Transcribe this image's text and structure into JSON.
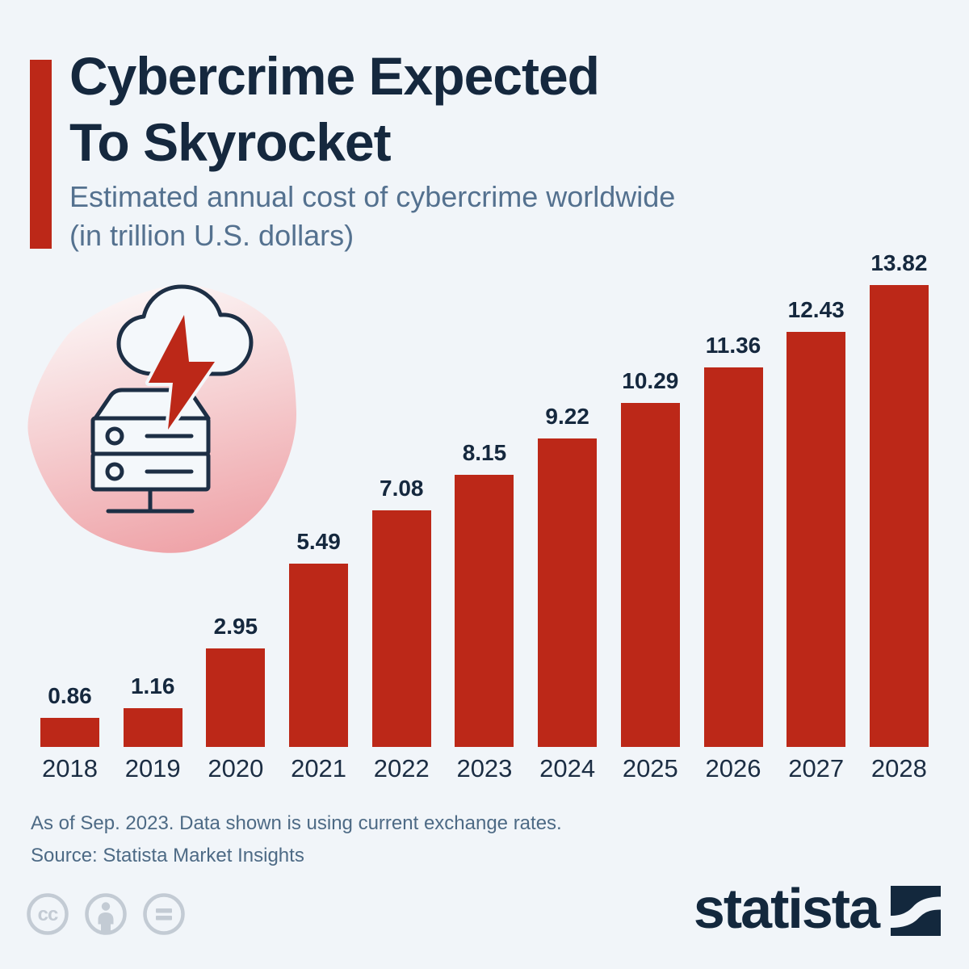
{
  "page": {
    "background": "#F1F5F9"
  },
  "header": {
    "accent_color": "#BC2818",
    "title_lines": [
      "Cybercrime Expected",
      "To Skyrocket"
    ],
    "subtitle_lines": [
      "Estimated annual cost of cybercrime worldwide",
      "(in trillion U.S. dollars)"
    ]
  },
  "chart_data": {
    "type": "bar",
    "title": "Cybercrime Expected To Skyrocket",
    "subtitle": "Estimated annual cost of cybercrime worldwide (in trillion U.S. dollars)",
    "categories": [
      "2018",
      "2019",
      "2020",
      "2021",
      "2022",
      "2023",
      "2024",
      "2025",
      "2026",
      "2027",
      "2028"
    ],
    "values": [
      0.86,
      1.16,
      2.95,
      5.49,
      7.08,
      8.15,
      9.22,
      10.29,
      11.36,
      12.43,
      13.82
    ],
    "value_labels": [
      "0.86",
      "1.16",
      "2.95",
      "5.49",
      "7.08",
      "8.15",
      "9.22",
      "10.29",
      "11.36",
      "12.43",
      "13.82"
    ],
    "xlabel": "",
    "ylabel": "trillion U.S. dollars",
    "ylim": [
      0,
      13.82
    ],
    "bar_color": "#BC2818",
    "label_color": "#15283E",
    "grid": false,
    "legend": "none",
    "data_labels_position": "above bars",
    "axis_labels_position": "below bars"
  },
  "illustration": {
    "name": "cloud-lightning-server-icon",
    "blob_gradient_top": "#FCF8F8",
    "blob_gradient_bottom": "#EFA4A9",
    "outline_color": "#1D2F45",
    "bolt_color": "#BC2818"
  },
  "footnote": {
    "line1": "As of Sep. 2023. Data shown is using current exchange rates.",
    "line2": "Source: Statista Market Insights"
  },
  "footer": {
    "license": {
      "cc_label": "cc",
      "icon_color": "#C3CBD4"
    },
    "brand_text": "statista",
    "brand_color": "#13283D"
  },
  "colors": {
    "title": "#15283E",
    "subtitle": "#54718F",
    "footnote": "#4D6A85",
    "axis_label": "#1B2D43"
  }
}
